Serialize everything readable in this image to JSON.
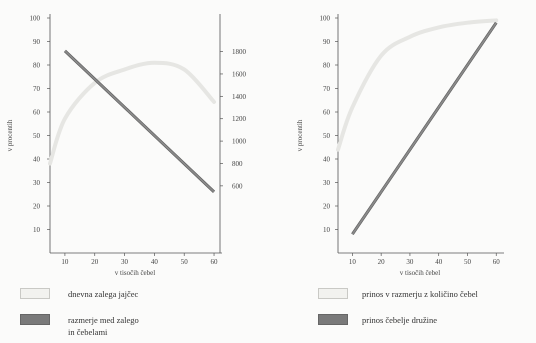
{
  "chart_data": [
    {
      "type": "line",
      "ylabel": "v procentih",
      "y2label": "",
      "xlabel": "v tisočih čebel",
      "xlim": [
        5,
        62
      ],
      "ylim": [
        0,
        100
      ],
      "y2lim": [
        0,
        2100
      ],
      "xticks": [
        10,
        20,
        30,
        40,
        50,
        60
      ],
      "yticks": [
        10,
        20,
        30,
        40,
        50,
        60,
        70,
        80,
        90,
        100
      ],
      "y2ticks": [
        600,
        800,
        1000,
        1200,
        1400,
        1600,
        1800
      ],
      "grid": false,
      "series": [
        {
          "name": "dnevna zalega jajčec",
          "axis": "right",
          "color": "#e6e6e3",
          "x": [
            5,
            10,
            20,
            30,
            40,
            50,
            60
          ],
          "y": [
            800,
            1200,
            1520,
            1640,
            1700,
            1640,
            1350
          ]
        },
        {
          "name": "razmerje med zalego in čebelami",
          "axis": "left",
          "color": "#8a8a8a",
          "x": [
            10,
            60
          ],
          "y": [
            86,
            26
          ]
        }
      ],
      "legend": {
        "placement": "bottom",
        "items": [
          {
            "label": "dnevna zalega jajčec",
            "fill": "#f2f2ef"
          },
          {
            "label": "razmerje med zalego",
            "label2": "in čebelami",
            "fill": "#7a7a7a"
          }
        ]
      }
    },
    {
      "type": "line",
      "ylabel": "v procentih",
      "xlabel": "v tisočih čebel",
      "xlim": [
        5,
        62
      ],
      "ylim": [
        0,
        100
      ],
      "xticks": [
        10,
        20,
        30,
        40,
        50,
        60
      ],
      "yticks": [
        10,
        20,
        30,
        40,
        50,
        60,
        70,
        80,
        90,
        100
      ],
      "grid": false,
      "series": [
        {
          "name": "prinos v razmerju z količino čebel",
          "color": "#e6e6e3",
          "x": [
            5,
            10,
            20,
            30,
            40,
            50,
            60
          ],
          "y": [
            44,
            62,
            84,
            92,
            96,
            98,
            99
          ]
        },
        {
          "name": "prinos čebelje družine",
          "color": "#8a8a8a",
          "x": [
            10,
            60
          ],
          "y": [
            8,
            98
          ]
        }
      ],
      "legend": {
        "placement": "bottom",
        "items": [
          {
            "label": "prinos v razmerju z količino čebel",
            "fill": "#f2f2ef"
          },
          {
            "label": "prinos čebelje družine",
            "fill": "#7a7a7a"
          }
        ]
      }
    }
  ]
}
